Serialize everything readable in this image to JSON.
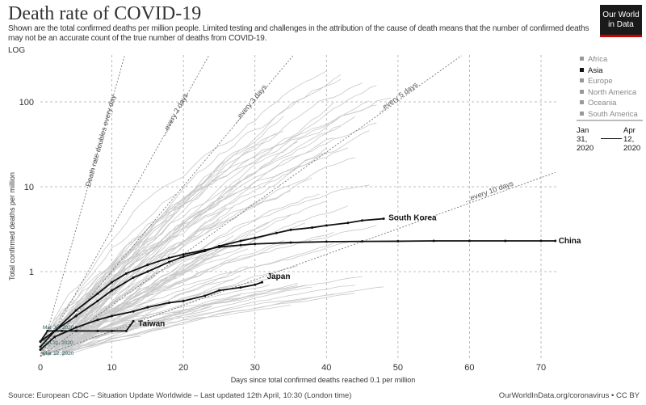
{
  "header": {
    "title": "Death rate of COVID-19",
    "subtitle": "Shown are the total confirmed deaths per million people. Limited testing and challenges in the attribution of the cause of death means that the number of confirmed deaths may not be an accurate count of the true number of deaths from COVID-19.",
    "scale_label": "LOG",
    "logo": "Our World in Data"
  },
  "legend": {
    "items": [
      "Africa",
      "Asia",
      "Europe",
      "North America",
      "Oceania",
      "South America"
    ],
    "selected": "Asia"
  },
  "timeline": {
    "start": "Jan 31, 2020",
    "end": "Apr 12, 2020"
  },
  "footer": {
    "source": "Source: European CDC – Situation Update Worldwide – Last updated 12th April, 10:30 (London time)",
    "link": "OurWorldInData.org/coronavirus • CC BY"
  },
  "colors": {
    "highlight": "#111111",
    "background_lines": "#c8c8c8",
    "logo_bg": "#1a1a1a",
    "logo_accent": "#cc0000"
  },
  "chart_data": {
    "type": "line",
    "xlabel": "Days since total confirmed deaths reached 0.1 per million",
    "ylabel": "Total confirmed deaths per million",
    "xlim": [
      0,
      72
    ],
    "ylim": [
      0.1,
      400
    ],
    "yscale": "log",
    "xticks": [
      0,
      10,
      20,
      30,
      40,
      50,
      60,
      70
    ],
    "yticks": [
      1,
      10,
      100
    ],
    "grid": true,
    "series": [
      {
        "name": "China",
        "x": [
          0,
          2,
          5,
          8,
          10,
          12,
          15,
          18,
          20,
          23,
          25,
          28,
          30,
          35,
          40,
          45,
          50,
          55,
          60,
          65,
          70,
          72
        ],
        "y": [
          0.13,
          0.2,
          0.35,
          0.55,
          0.75,
          0.95,
          1.2,
          1.45,
          1.6,
          1.8,
          1.95,
          2.05,
          2.12,
          2.2,
          2.25,
          2.27,
          2.28,
          2.3,
          2.3,
          2.3,
          2.3,
          2.3
        ]
      },
      {
        "name": "South Korea",
        "x": [
          0,
          2,
          5,
          8,
          10,
          13,
          15,
          18,
          20,
          23,
          25,
          28,
          30,
          33,
          35,
          38,
          40,
          43,
          45,
          48
        ],
        "y": [
          0.15,
          0.2,
          0.3,
          0.45,
          0.6,
          0.85,
          1.0,
          1.3,
          1.5,
          1.75,
          2.0,
          2.3,
          2.5,
          2.85,
          3.1,
          3.3,
          3.5,
          3.75,
          4.0,
          4.2
        ]
      },
      {
        "name": "Japan",
        "x": [
          0,
          2,
          5,
          8,
          10,
          13,
          15,
          18,
          20,
          23,
          25,
          28,
          30,
          31
        ],
        "y": [
          0.12,
          0.17,
          0.22,
          0.27,
          0.3,
          0.34,
          0.38,
          0.43,
          0.45,
          0.52,
          0.6,
          0.65,
          0.7,
          0.75
        ]
      },
      {
        "name": "Taiwan",
        "x": [
          0,
          1,
          3,
          5,
          8,
          10,
          12,
          13
        ],
        "y": [
          0.15,
          0.2,
          0.2,
          0.2,
          0.2,
          0.2,
          0.2,
          0.26
        ]
      }
    ],
    "reference_lines": [
      {
        "label": "Death rate doubles every day",
        "doubling_days": 1
      },
      {
        "label": "...every 2 days",
        "doubling_days": 2
      },
      {
        "label": "...every 3 days",
        "doubling_days": 3
      },
      {
        "label": "...every 5 days",
        "doubling_days": 5
      },
      {
        "label": "...every 10 days",
        "doubling_days": 10
      }
    ],
    "annotations": [
      "Mar 30, 2020",
      "Jan 31, 2020",
      "Mar 12, 2020"
    ]
  }
}
